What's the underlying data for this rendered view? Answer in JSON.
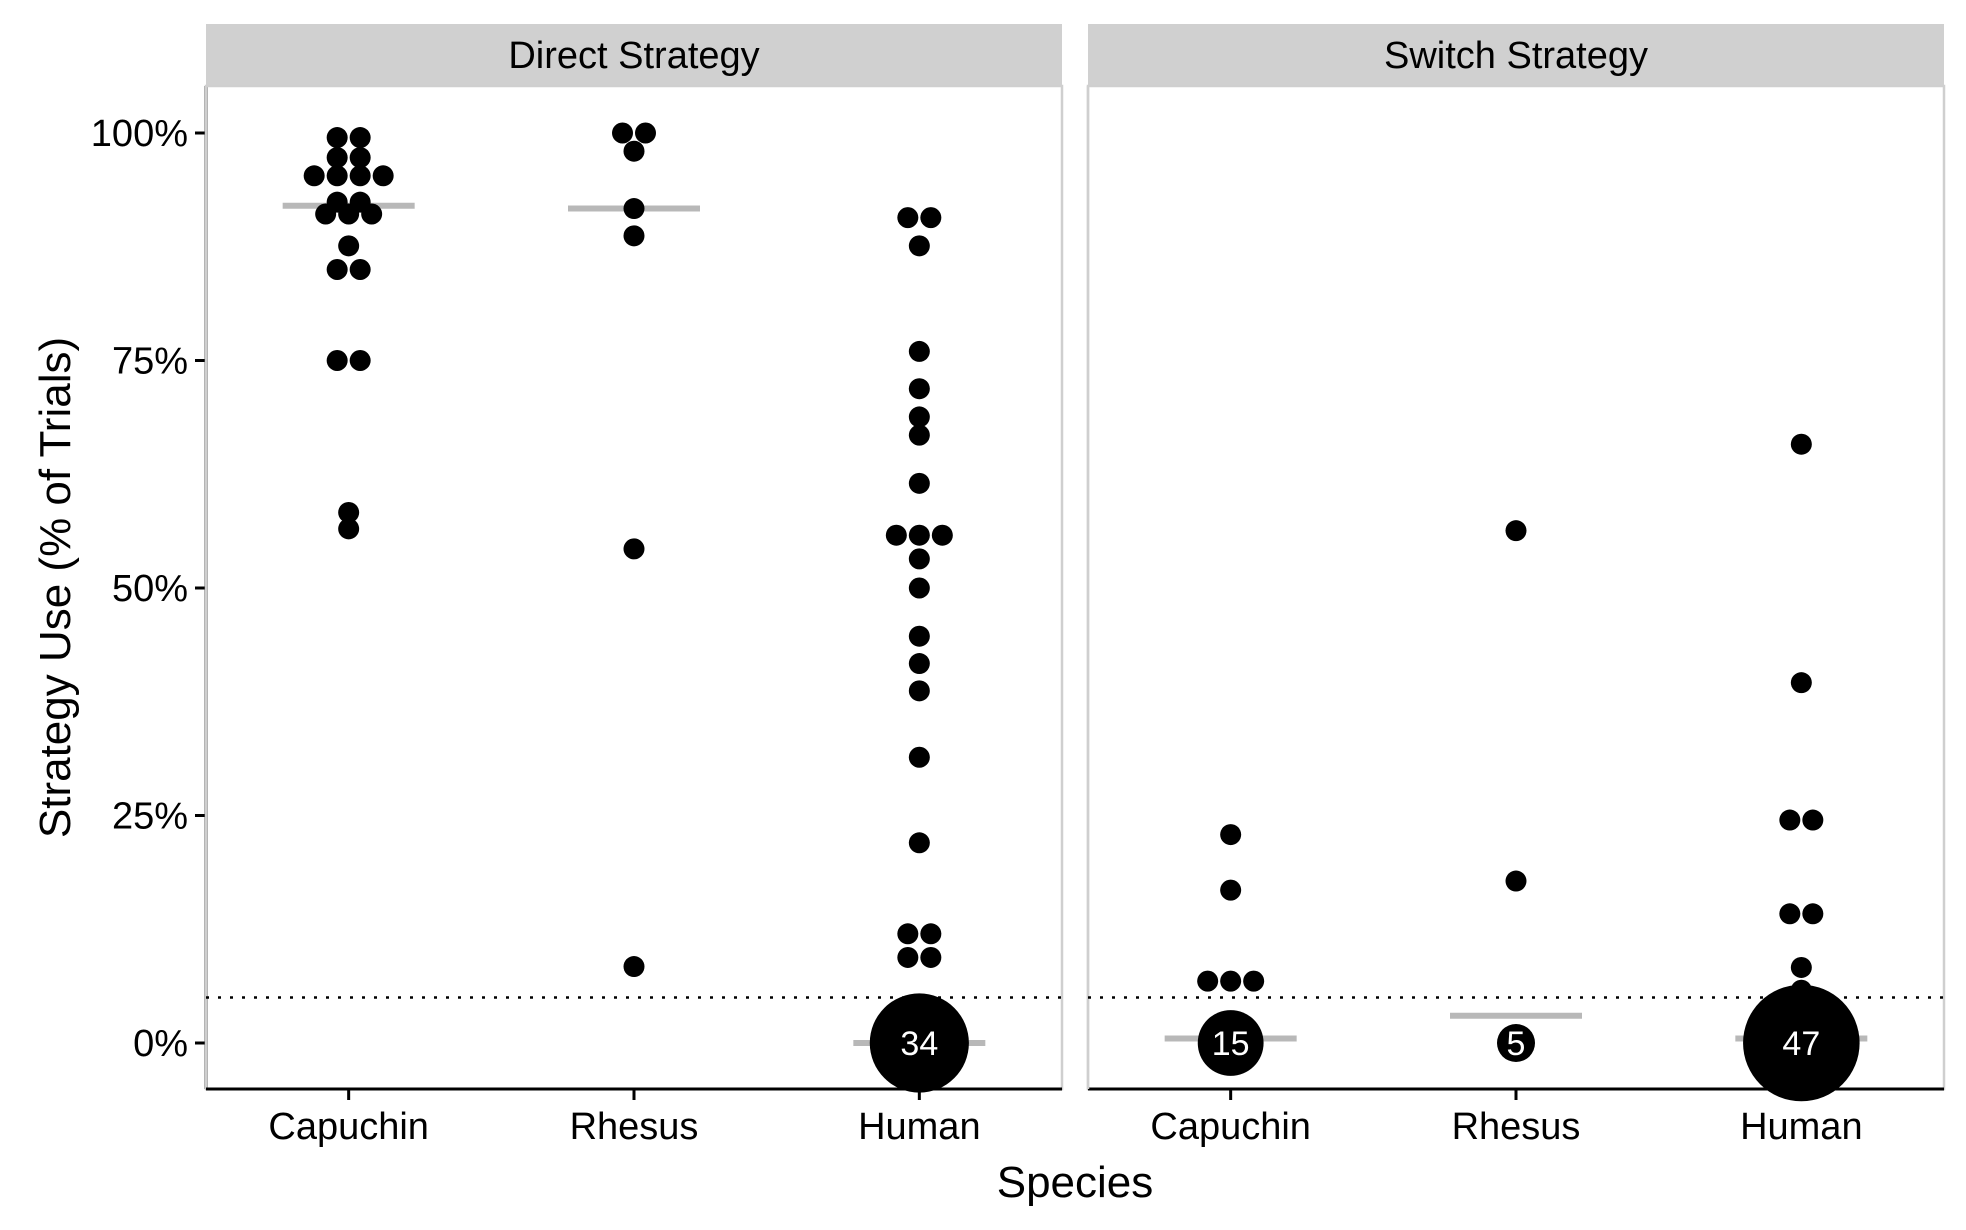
{
  "chart_data": {
    "type": "scatter",
    "subtype": "dot-strip with median lines",
    "xlabel": "Species",
    "ylabel": "Strategy Use (% of Trials)",
    "categories": [
      "Capuchin",
      "Rhesus",
      "Human"
    ],
    "ylim": [
      -5,
      105
    ],
    "yticks": [
      0,
      25,
      50,
      75,
      100
    ],
    "ytick_labels": [
      "0%",
      "25%",
      "50%",
      "75%",
      "100%"
    ],
    "reference_line": {
      "y": 5,
      "style": "dotted"
    },
    "grid": false,
    "colors": {
      "point": "#000000",
      "median": "#b8b8b8",
      "strip": "#d0d0d0",
      "count_text": "#ffffff"
    },
    "panels": [
      {
        "title": "Direct Strategy",
        "groups": [
          {
            "category": "Capuchin",
            "median": 92,
            "points": [
              99.5,
              99.5,
              97.3,
              97.3,
              95.3,
              95.3,
              95.3,
              95.3,
              92.4,
              92.4,
              91.1,
              91.1,
              91.1,
              87.6,
              85,
              85,
              75,
              75,
              58.3,
              56.5
            ],
            "zero_count": null
          },
          {
            "category": "Rhesus",
            "median": 91.7,
            "points": [
              100,
              100,
              98,
              91.7,
              88.7,
              54.3,
              8.4
            ],
            "zero_count": null
          },
          {
            "category": "Human",
            "median": 0,
            "points": [
              90.7,
              90.7,
              87.6,
              76,
              71.9,
              68.8,
              66.8,
              61.5,
              55.8,
              55.8,
              55.8,
              53.2,
              50,
              44.7,
              41.7,
              38.7,
              31.4,
              22,
              12,
              12,
              9.4,
              9.4
            ],
            "zero_count": "34"
          }
        ]
      },
      {
        "title": "Switch Strategy",
        "groups": [
          {
            "category": "Capuchin",
            "median": 0.5,
            "points": [
              22.9,
              16.8,
              6.8,
              6.8,
              6.8
            ],
            "zero_count": "15"
          },
          {
            "category": "Rhesus",
            "median": 3,
            "points": [
              56.3,
              17.8
            ],
            "zero_count": "5"
          },
          {
            "category": "Human",
            "median": 0.5,
            "points": [
              65.8,
              39.6,
              24.5,
              24.5,
              14.2,
              14.2,
              8.3,
              5.8
            ],
            "zero_count": "47"
          }
        ]
      }
    ]
  }
}
